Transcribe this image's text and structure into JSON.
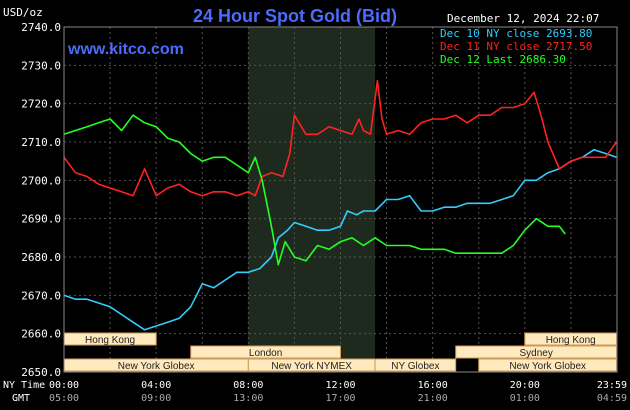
{
  "header": {
    "title": "24 Hour Spot Gold (Bid)",
    "unit": "USD/oz",
    "timestamp": "December 12, 2024 22:07",
    "site": "www.kitco.com"
  },
  "legend": [
    {
      "label": "Dec 10 NY close 2693.80",
      "color": "#33CCFF"
    },
    {
      "label": "Dec 11 NY close 2717.50",
      "color": "#FF2222"
    },
    {
      "label": "Dec 12 Last 2686.30",
      "color": "#22FF22"
    }
  ],
  "time_axis": {
    "ny_label": "NY Time",
    "gmt_label": "GMT",
    "ny_ticks": [
      "00:00",
      "04:00",
      "08:00",
      "12:00",
      "16:00",
      "20:00",
      "23:59"
    ],
    "gmt_ticks": [
      "05:00",
      "09:00",
      "13:00",
      "17:00",
      "21:00",
      "01:00",
      "04:59"
    ]
  },
  "colors": {
    "background": "#000000",
    "grid": "#555555",
    "axis_text": "#FFFFFF",
    "title": "#4A6CFF",
    "session_shade": "#1F2A1F",
    "session_bar_bg": "#FFE9BF",
    "session_bar_border": "#CC9955",
    "session_text": "#222222"
  },
  "sessions": [
    {
      "label": "Hong Kong",
      "start": "00:00",
      "end": "04:00",
      "row": 0
    },
    {
      "label": "London",
      "start": "05:30",
      "end": "12:00",
      "row": 1
    },
    {
      "label": "New York Globex",
      "start": "00:00",
      "end": "08:00",
      "row": 2
    },
    {
      "label": "New York NYMEX",
      "start": "08:00",
      "end": "13:30",
      "row": 2
    },
    {
      "label": "NY Globex",
      "start": "13:30",
      "end": "17:00",
      "row": 2
    },
    {
      "label": "Hong Kong",
      "start": "20:00",
      "end": "23:59",
      "row": 0
    },
    {
      "label": "Sydney",
      "start": "17:00",
      "end": "23:59",
      "row": 1
    },
    {
      "label": "New York Globex",
      "start": "18:00",
      "end": "23:59",
      "row": 2
    }
  ],
  "chart_data": {
    "type": "line",
    "ylim": [
      2650,
      2740
    ],
    "y_ticks": [
      "2650.0",
      "2660.0",
      "2670.0",
      "2680.0",
      "2690.0",
      "2700.0",
      "2710.0",
      "2720.0",
      "2730.0",
      "2740.0"
    ],
    "x_unit": "hours since 00:00 NY time",
    "shaded_range": [
      "08:00",
      "13:30"
    ],
    "series": [
      {
        "name": "Dec 10 NY close 2693.80",
        "color": "#33CCFF",
        "points": [
          [
            0,
            2670
          ],
          [
            0.5,
            2669
          ],
          [
            1,
            2669
          ],
          [
            1.5,
            2668
          ],
          [
            2,
            2667
          ],
          [
            2.5,
            2665
          ],
          [
            3,
            2663
          ],
          [
            3.5,
            2661
          ],
          [
            4,
            2662
          ],
          [
            4.5,
            2663
          ],
          [
            5,
            2664
          ],
          [
            5.5,
            2667
          ],
          [
            6,
            2673
          ],
          [
            6.5,
            2672
          ],
          [
            7,
            2674
          ],
          [
            7.5,
            2676
          ],
          [
            8,
            2676
          ],
          [
            8.5,
            2677
          ],
          [
            9,
            2680
          ],
          [
            9.3,
            2685
          ],
          [
            9.7,
            2687
          ],
          [
            10,
            2689
          ],
          [
            10.5,
            2688
          ],
          [
            11,
            2687
          ],
          [
            11.5,
            2687
          ],
          [
            12,
            2688
          ],
          [
            12.3,
            2692
          ],
          [
            12.7,
            2691
          ],
          [
            13,
            2692
          ],
          [
            13.5,
            2692
          ],
          [
            14,
            2695
          ],
          [
            14.5,
            2695
          ],
          [
            15,
            2696
          ],
          [
            15.5,
            2692
          ],
          [
            16,
            2692
          ],
          [
            16.5,
            2693
          ],
          [
            17,
            2693
          ],
          [
            17.5,
            2694
          ],
          [
            18,
            2694
          ],
          [
            18.5,
            2694
          ],
          [
            19,
            2695
          ],
          [
            19.5,
            2696
          ],
          [
            20,
            2700
          ],
          [
            20.5,
            2700
          ],
          [
            21,
            2702
          ],
          [
            21.5,
            2703
          ],
          [
            22,
            2705
          ],
          [
            22.5,
            2706
          ],
          [
            23,
            2708
          ],
          [
            23.5,
            2707
          ],
          [
            23.98,
            2706
          ]
        ]
      },
      {
        "name": "Dec 11 NY close 2717.50",
        "color": "#FF2222",
        "points": [
          [
            0,
            2706
          ],
          [
            0.5,
            2702
          ],
          [
            1,
            2701
          ],
          [
            1.5,
            2699
          ],
          [
            2,
            2698
          ],
          [
            2.5,
            2697
          ],
          [
            3,
            2696
          ],
          [
            3.5,
            2703
          ],
          [
            4,
            2696
          ],
          [
            4.5,
            2698
          ],
          [
            5,
            2699
          ],
          [
            5.5,
            2697
          ],
          [
            6,
            2696
          ],
          [
            6.5,
            2697
          ],
          [
            7,
            2697
          ],
          [
            7.5,
            2696
          ],
          [
            8,
            2697
          ],
          [
            8.3,
            2696
          ],
          [
            8.6,
            2701
          ],
          [
            9,
            2702
          ],
          [
            9.5,
            2701
          ],
          [
            9.8,
            2707
          ],
          [
            10,
            2717
          ],
          [
            10.5,
            2712
          ],
          [
            11,
            2712
          ],
          [
            11.5,
            2714
          ],
          [
            12,
            2713
          ],
          [
            12.5,
            2712
          ],
          [
            12.8,
            2716
          ],
          [
            13,
            2713
          ],
          [
            13.3,
            2712
          ],
          [
            13.6,
            2726
          ],
          [
            13.8,
            2716
          ],
          [
            14,
            2712
          ],
          [
            14.5,
            2713
          ],
          [
            15,
            2712
          ],
          [
            15.5,
            2715
          ],
          [
            16,
            2716
          ],
          [
            16.5,
            2716
          ],
          [
            17,
            2717
          ],
          [
            17.5,
            2715
          ],
          [
            18,
            2717
          ],
          [
            18.5,
            2717
          ],
          [
            19,
            2719
          ],
          [
            19.5,
            2719
          ],
          [
            20,
            2720
          ],
          [
            20.4,
            2723
          ],
          [
            20.7,
            2717
          ],
          [
            21,
            2710
          ],
          [
            21.5,
            2703
          ],
          [
            22,
            2705
          ],
          [
            22.5,
            2706
          ],
          [
            23,
            2706
          ],
          [
            23.5,
            2706
          ],
          [
            23.98,
            2710
          ]
        ]
      },
      {
        "name": "Dec 12 Last 2686.30",
        "color": "#22FF22",
        "points": [
          [
            0,
            2712
          ],
          [
            0.5,
            2713
          ],
          [
            1,
            2714
          ],
          [
            1.5,
            2715
          ],
          [
            2,
            2716
          ],
          [
            2.5,
            2713
          ],
          [
            3,
            2717
          ],
          [
            3.5,
            2715
          ],
          [
            4,
            2714
          ],
          [
            4.5,
            2711
          ],
          [
            5,
            2710
          ],
          [
            5.5,
            2707
          ],
          [
            6,
            2705
          ],
          [
            6.5,
            2706
          ],
          [
            7,
            2706
          ],
          [
            7.5,
            2704
          ],
          [
            8,
            2702
          ],
          [
            8.3,
            2706
          ],
          [
            8.6,
            2700
          ],
          [
            9,
            2688
          ],
          [
            9.3,
            2678
          ],
          [
            9.6,
            2684
          ],
          [
            10,
            2680
          ],
          [
            10.5,
            2679
          ],
          [
            11,
            2683
          ],
          [
            11.5,
            2682
          ],
          [
            12,
            2684
          ],
          [
            12.5,
            2685
          ],
          [
            13,
            2683
          ],
          [
            13.5,
            2685
          ],
          [
            14,
            2683
          ],
          [
            14.5,
            2683
          ],
          [
            15,
            2683
          ],
          [
            15.5,
            2682
          ],
          [
            16,
            2682
          ],
          [
            16.5,
            2682
          ],
          [
            17,
            2681
          ],
          [
            17.5,
            2681
          ],
          [
            18,
            2681
          ],
          [
            18.5,
            2681
          ],
          [
            19,
            2681
          ],
          [
            19.5,
            2683
          ],
          [
            20,
            2687
          ],
          [
            20.5,
            2690
          ],
          [
            21,
            2688
          ],
          [
            21.5,
            2688
          ],
          [
            21.75,
            2686
          ]
        ]
      }
    ]
  }
}
